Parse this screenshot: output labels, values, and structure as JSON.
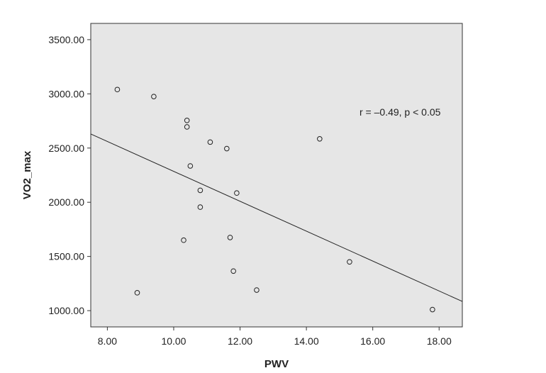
{
  "chart_data": {
    "type": "scatter",
    "title": "",
    "xlabel": "PWV",
    "ylabel": "VO2_max",
    "xlim": [
      7.5,
      18.7
    ],
    "ylim": [
      850,
      3650
    ],
    "x_ticks": [
      "8.00",
      "10.00",
      "12.00",
      "14.00",
      "16.00",
      "18.00"
    ],
    "x_tick_values": [
      8,
      10,
      12,
      14,
      16,
      18
    ],
    "y_ticks": [
      "1000.00",
      "1500.00",
      "2000.00",
      "2500.00",
      "3000.00",
      "3500.00"
    ],
    "y_tick_values": [
      1000,
      1500,
      2000,
      2500,
      3000,
      3500
    ],
    "grid": false,
    "plot_background": "#e6e6e6",
    "marker_color": "#222222",
    "line_color": "#222222",
    "points": [
      {
        "x": 8.3,
        "y": 3040
      },
      {
        "x": 9.4,
        "y": 2975
      },
      {
        "x": 10.4,
        "y": 2755
      },
      {
        "x": 10.4,
        "y": 2695
      },
      {
        "x": 11.1,
        "y": 2555
      },
      {
        "x": 11.6,
        "y": 2495
      },
      {
        "x": 14.4,
        "y": 2585
      },
      {
        "x": 10.5,
        "y": 2335
      },
      {
        "x": 10.8,
        "y": 2110
      },
      {
        "x": 11.9,
        "y": 2085
      },
      {
        "x": 10.8,
        "y": 1955
      },
      {
        "x": 11.7,
        "y": 1675
      },
      {
        "x": 10.3,
        "y": 1650
      },
      {
        "x": 15.3,
        "y": 1450
      },
      {
        "x": 11.8,
        "y": 1365
      },
      {
        "x": 12.5,
        "y": 1190
      },
      {
        "x": 8.9,
        "y": 1165
      },
      {
        "x": 17.8,
        "y": 1010
      }
    ],
    "fit_line": {
      "x": [
        7.5,
        18.7
      ],
      "y": [
        2630,
        1085
      ]
    },
    "annotation": "r = –0.49, p < 0.05"
  }
}
